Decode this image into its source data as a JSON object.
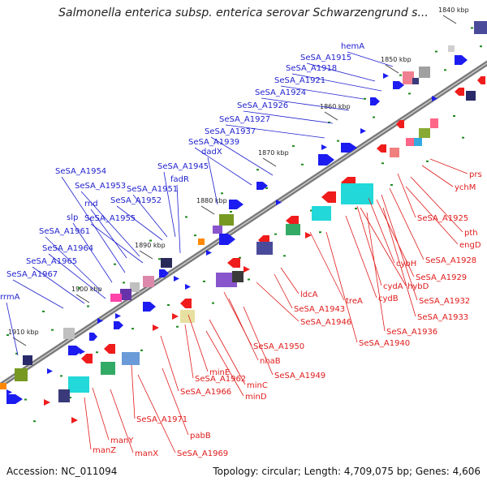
{
  "title": "Salmonella enterica subsp. enterica serovar Schwarzengrund s...",
  "footer": {
    "accession": "Accession: NC_011094",
    "summary": "Topology: circular; Length: 4,709,075 bp; Genes: 4,606"
  },
  "colors": {
    "backbone": "#7a7a7a",
    "label_upper": "#1f1fcf",
    "label_lower": "#e01b1b",
    "feature_blue": "#1c1cf0",
    "feature_red": "#f01c1c",
    "tick_green": "#1e8a1e"
  },
  "kbp_ticks": [
    "1840 kbp",
    "1850 kbp",
    "1860 kbp",
    "1870 kbp",
    "1880 kbp",
    "1890 kbp",
    "1900 kbp",
    "1910 kbp"
  ],
  "upper_labels": [
    "hemA",
    "SeSA_A1915",
    "SeSA_A1918",
    "SeSA_A1921",
    "SeSA_A1924",
    "SeSA_A1926",
    "SeSA_A1927",
    "SeSA_A1937",
    "SeSA_A1939",
    "dadX",
    "SeSA_A1945",
    "fadR",
    "SeSA_A1954",
    "SeSA_A1953",
    "SeSA_A1951",
    "rnd",
    "SeSA_A1952",
    "slp",
    "SeSA_A1955",
    "SeSA_A1961",
    "SeSA_A1964",
    "SeSA_A1965",
    "SeSA_A1967",
    "rrmA"
  ],
  "lower_labels": [
    "prs",
    "ychM",
    "SeSA_A1925",
    "pth",
    "engD",
    "cybH",
    "SeSA_A1928",
    "hybD",
    "SeSA_A1929",
    "cydA",
    "cydB",
    "SeSA_A1932",
    "SeSA_A1933",
    "treA",
    "SeSA_A1936",
    "SeSA_A1940",
    "ldcA",
    "SeSA_A1943",
    "SeSA_A1946",
    "SeSA_A1950",
    "nhaB",
    "SeSA_A1949",
    "minE",
    "SeSA_A1962",
    "minC",
    "SeSA_A1966",
    "minD",
    "SeSA_A1971",
    "pabB",
    "SeSA_A1969",
    "manY",
    "manZ",
    "manX"
  ]
}
